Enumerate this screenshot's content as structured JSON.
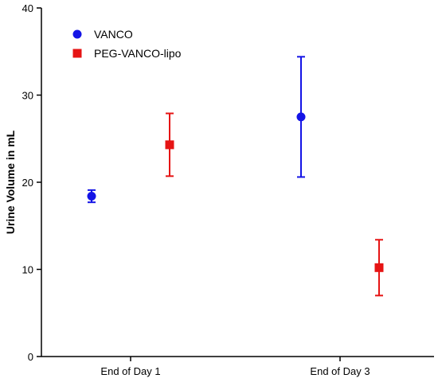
{
  "chart_data": {
    "type": "scatter",
    "title": "",
    "xlabel": "",
    "ylabel": "Urine Volume in mL",
    "categories": [
      "End of Day 1",
      "End of Day 3"
    ],
    "ylim": [
      0,
      40
    ],
    "yticks": [
      0,
      10,
      20,
      30,
      40
    ],
    "grid": false,
    "legend_position": "top-left",
    "series": [
      {
        "name": "VANCO",
        "color": "#1414e6",
        "marker": "circle",
        "points": [
          {
            "category": "End of Day 1",
            "mean": 18.4,
            "lower": 17.7,
            "upper": 19.1
          },
          {
            "category": "End of Day 3",
            "mean": 27.5,
            "lower": 20.6,
            "upper": 34.4
          }
        ]
      },
      {
        "name": "PEG-VANCO-lipo",
        "color": "#e61414",
        "marker": "square",
        "points": [
          {
            "category": "End of Day 1",
            "mean": 24.3,
            "lower": 20.7,
            "upper": 27.9
          },
          {
            "category": "End of Day 3",
            "mean": 10.2,
            "lower": 7.0,
            "upper": 13.4
          }
        ]
      }
    ]
  }
}
